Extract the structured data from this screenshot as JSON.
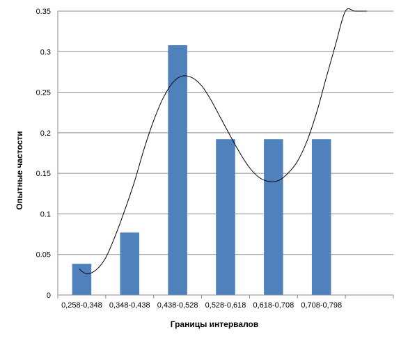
{
  "chart_data": {
    "type": "bar",
    "title": "",
    "xlabel": "Границы интервалов",
    "ylabel": "Опытные частости",
    "categories": [
      "0,258-0,348",
      "0,348-0,438",
      "0,438-0,528",
      "0,528-0,618",
      "0,618-0,708",
      "0,708-0,798"
    ],
    "series": [
      {
        "values": [
          0.0385,
          0.077,
          0.308,
          0.192,
          0.192,
          0.192
        ]
      }
    ],
    "ylim": [
      0,
      0.35
    ],
    "yticks": [
      "0",
      "0.05",
      "0.1",
      "0.15",
      "0.2",
      "0.25",
      "0.3",
      "0.35"
    ],
    "grid": true,
    "legend": "none",
    "bar_color": "#4f81bd",
    "trendline": {
      "type": "polynomial",
      "color": "#000000",
      "x": [
        0.45,
        0.6,
        0.8,
        1.0,
        1.2,
        1.4,
        1.6,
        1.8,
        2.0,
        2.2,
        2.4,
        2.6,
        2.8,
        3.0,
        3.2,
        3.4,
        3.6,
        3.8,
        4.0,
        4.2,
        4.4,
        4.6,
        4.8,
        5.0,
        5.2,
        5.4,
        5.6,
        5.8,
        6.0,
        6.2,
        6.45
      ],
      "y": [
        0.032,
        0.026,
        0.031,
        0.046,
        0.073,
        0.105,
        0.14,
        0.18,
        0.215,
        0.243,
        0.262,
        0.27,
        0.268,
        0.258,
        0.24,
        0.218,
        0.196,
        0.175,
        0.157,
        0.145,
        0.14,
        0.141,
        0.15,
        0.165,
        0.19,
        0.225,
        0.268,
        0.31,
        0.35,
        0.35,
        0.35
      ]
    }
  }
}
